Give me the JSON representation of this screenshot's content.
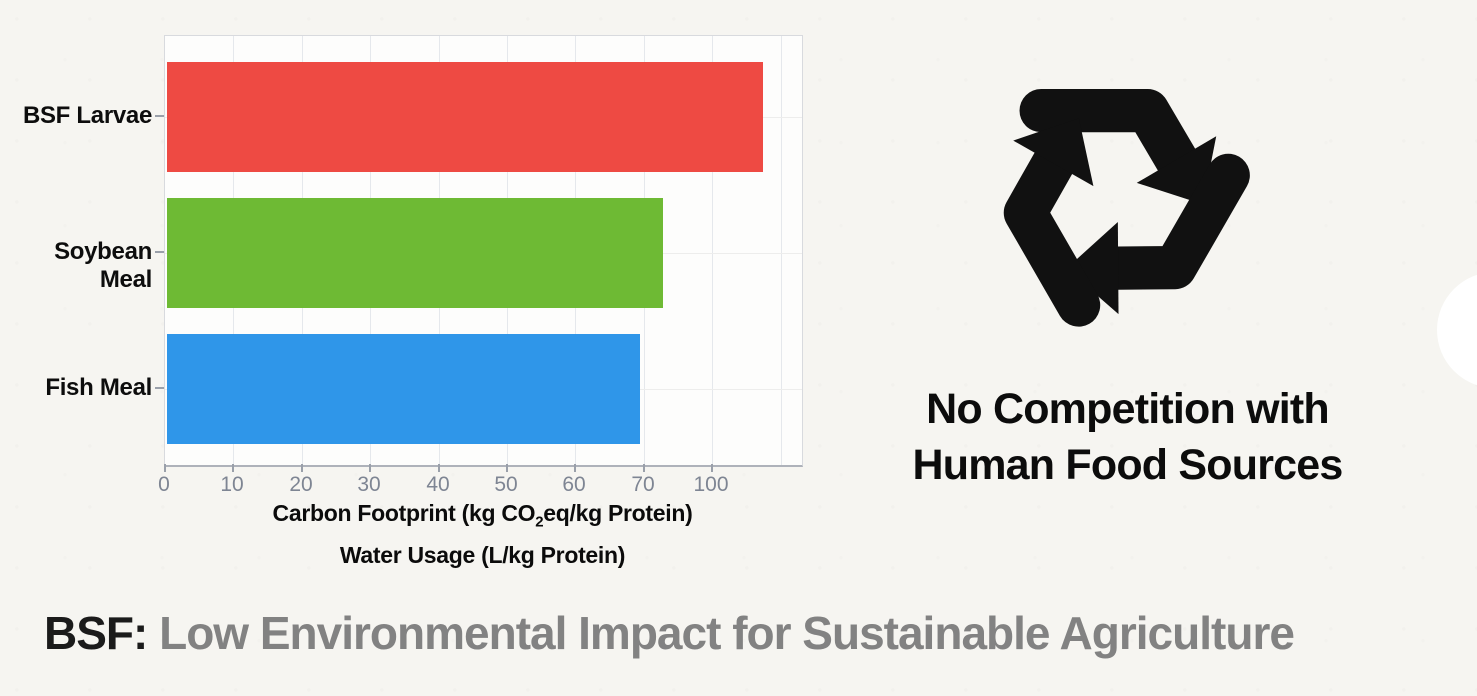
{
  "chart_data": {
    "type": "bar",
    "orientation": "horizontal",
    "title": "",
    "categories": [
      "BSF Larvae",
      "Soybean Meal",
      "Fish Meal"
    ],
    "values": [
      118,
      74,
      69
    ],
    "bar_colors": [
      "#ee4a43",
      "#6eba34",
      "#2f96e9"
    ],
    "bar_fractions": [
      0.936,
      0.779,
      0.743
    ],
    "x_tick_labels": [
      "0",
      "10",
      "20",
      "30",
      "40",
      "50",
      "60",
      "70",
      "100"
    ],
    "grid": "on",
    "legend": "none",
    "xlabel_line1_pre": "Carbon Footprint (kg CO",
    "xlabel_line1_sub": "2",
    "xlabel_line1_post": "eq/kg Protein)",
    "xlabel_line2": "Water Usage (L/kg Protein)"
  },
  "right_panel": {
    "icon": "recycle-icon",
    "icon_color": "#111111",
    "heading_line1": "No Competition with",
    "heading_line2": "Human Food Sources"
  },
  "bottom_title": {
    "highlight": "BSF:",
    "rest": " Low Environmental Impact for Sustainable Agriculture",
    "highlight_color": "#1b1b1b",
    "rest_color": "#828282"
  },
  "colors": {
    "page_background": "#f6f5f1",
    "panel_background": "#fdfdfc",
    "gridline": "#e5e8ec",
    "axis_line": "#aeb2ba",
    "tick_text": "#7e8593"
  }
}
